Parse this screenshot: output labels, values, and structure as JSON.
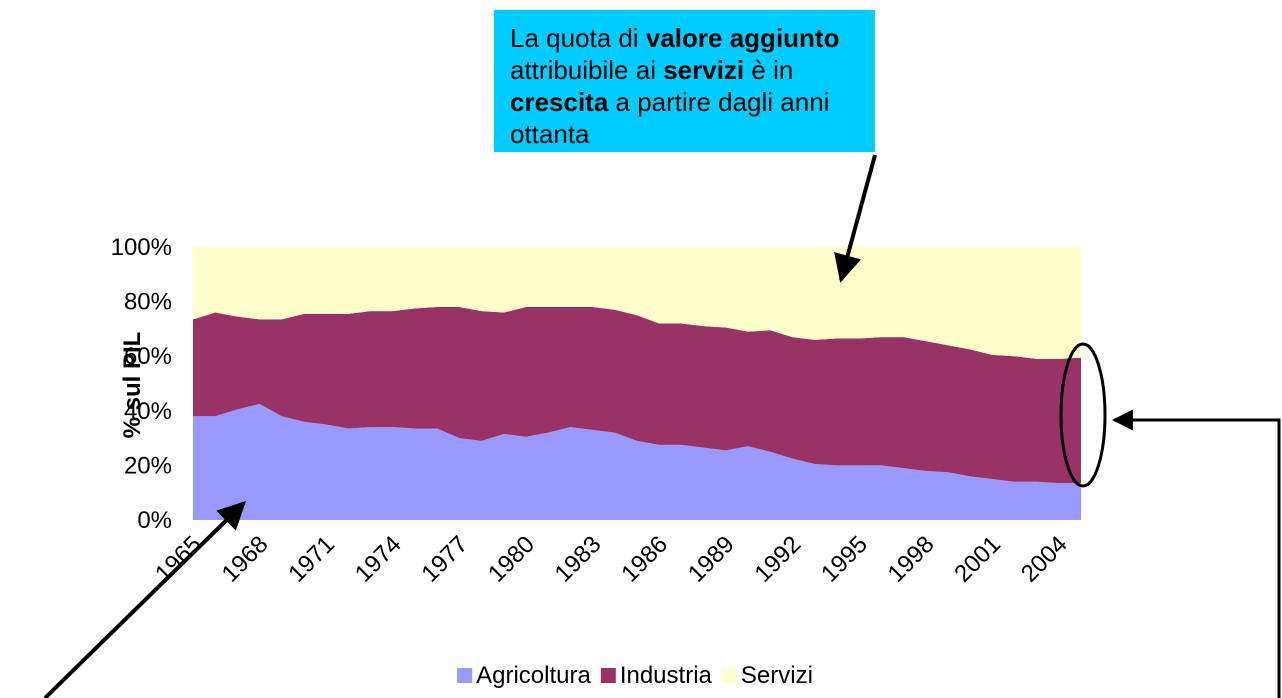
{
  "chart_data": {
    "type": "stacked_area",
    "y_axis_label": "% sul PIL",
    "annotation": [
      {
        "text": "La quota di ",
        "bold": false
      },
      {
        "text": "valore aggiunto",
        "bold": true
      },
      {
        "text": " attribuibile ai ",
        "bold": false
      },
      {
        "text": "servizi",
        "bold": true
      },
      {
        "text": " è in ",
        "bold": false
      },
      {
        "text": "crescita",
        "bold": true
      },
      {
        "text": " a partire dagli anni ottanta",
        "bold": false
      }
    ],
    "categories": [
      "1965",
      null,
      null,
      "1968",
      null,
      null,
      "1971",
      null,
      null,
      "1974",
      null,
      null,
      "1977",
      null,
      null,
      "1980",
      null,
      null,
      "1983",
      null,
      null,
      "1986",
      null,
      null,
      "1989",
      null,
      null,
      "1992",
      null,
      null,
      "1995",
      null,
      null,
      "1998",
      null,
      null,
      "2001",
      null,
      null,
      "2004",
      null
    ],
    "series": [
      {
        "name": "Agricoltura",
        "color": "#9999ff",
        "values": [
          38,
          38,
          40.5,
          42.5,
          38,
          36,
          35,
          33.5,
          34,
          34,
          33.5,
          33.5,
          30,
          29,
          31.5,
          30.5,
          32,
          34,
          33,
          32,
          29,
          27.5,
          27.5,
          26.5,
          25.5,
          27,
          25,
          22.5,
          20.5,
          20,
          20,
          20,
          19,
          18,
          17.5,
          16,
          15,
          14,
          14,
          13.5,
          13.5
        ]
      },
      {
        "name": "Industria",
        "color": "#993366",
        "values": [
          35.5,
          38,
          34,
          31,
          35.5,
          39.5,
          40.5,
          42,
          42.5,
          42.5,
          44,
          44.5,
          48,
          47.5,
          44.5,
          47.5,
          46,
          44,
          45,
          45,
          46,
          44.5,
          44.5,
          44.5,
          45,
          42,
          44.5,
          44.5,
          45.5,
          46.5,
          46.5,
          47,
          48,
          47.5,
          46.5,
          46.5,
          45.5,
          46,
          45,
          45.5,
          46
        ]
      },
      {
        "name": "Servizi",
        "color": "#ffffcc",
        "values": [
          26.5,
          24,
          25.5,
          26.5,
          26.5,
          24.5,
          24.5,
          24.5,
          23.5,
          23.5,
          22.5,
          22,
          22,
          23.5,
          24,
          22,
          22,
          22,
          22,
          23,
          25,
          28,
          28,
          29,
          29.5,
          31,
          30.5,
          33,
          34,
          33.5,
          33.5,
          33,
          33,
          34.5,
          36,
          37.5,
          39.5,
          40,
          41,
          41,
          40.5
        ]
      }
    ],
    "ylim": [
      0,
      100
    ],
    "yticks": [
      {
        "value": 0,
        "label": "0%"
      },
      {
        "value": 20,
        "label": "20%"
      },
      {
        "value": 40,
        "label": "40%"
      },
      {
        "value": 60,
        "label": "60%"
      },
      {
        "value": 80,
        "label": "80%"
      },
      {
        "value": 100,
        "label": "100%"
      }
    ],
    "legend": "bottom"
  }
}
